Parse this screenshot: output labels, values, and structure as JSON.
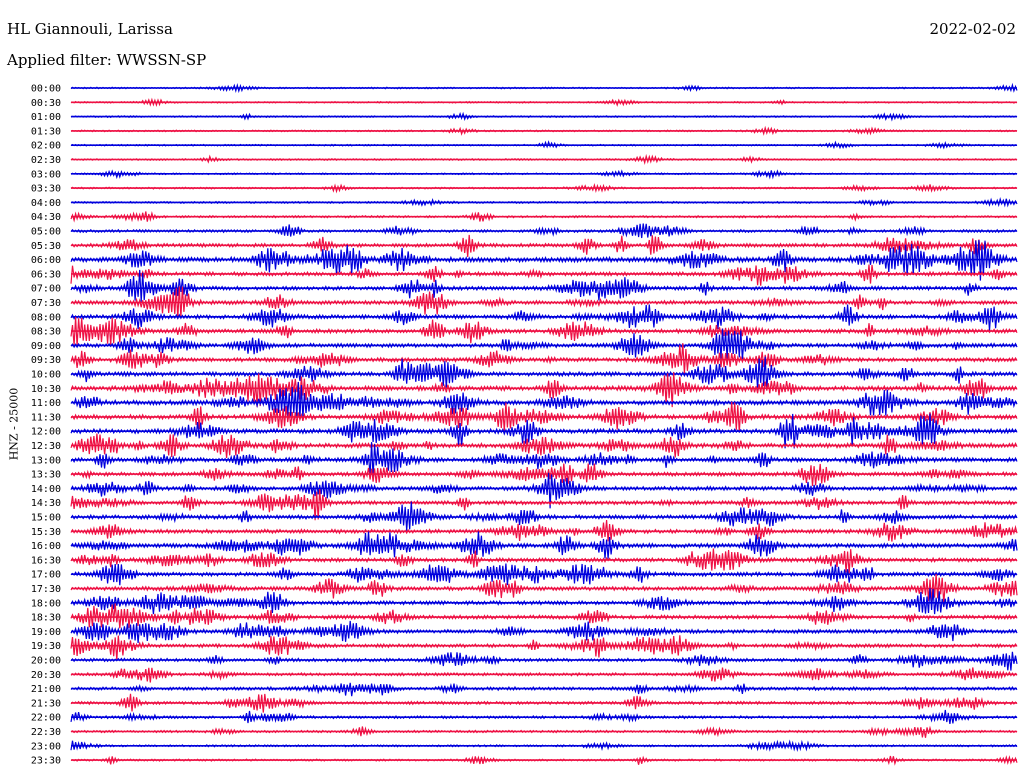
{
  "header": {
    "station": "HL Giannouli, Larissa",
    "date": "2022-02-02",
    "filter": "Applied filter: WWSSN-SP"
  },
  "axis_label": "HNZ - 25000",
  "colors": {
    "even_rows": "#0000dd",
    "odd_rows": "#ee1144"
  },
  "row_times": [
    "00:00",
    "00:30",
    "01:00",
    "01:30",
    "02:00",
    "02:30",
    "03:00",
    "03:30",
    "04:00",
    "04:30",
    "05:00",
    "05:30",
    "06:00",
    "06:30",
    "07:00",
    "07:30",
    "08:00",
    "08:30",
    "09:00",
    "09:30",
    "10:00",
    "10:30",
    "11:00",
    "11:30",
    "12:00",
    "12:30",
    "13:00",
    "13:30",
    "14:00",
    "14:30",
    "15:00",
    "15:30",
    "16:00",
    "16:30",
    "17:00",
    "17:30",
    "18:00",
    "18:30",
    "19:00",
    "19:30",
    "20:00",
    "20:30",
    "21:00",
    "21:30",
    "22:00",
    "22:30",
    "23:00",
    "23:30"
  ],
  "activity_level": [
    0.03,
    0.03,
    0.04,
    0.04,
    0.04,
    0.05,
    0.05,
    0.06,
    0.08,
    0.12,
    0.22,
    0.35,
    0.55,
    0.4,
    0.38,
    0.4,
    0.42,
    0.42,
    0.4,
    0.4,
    0.45,
    0.5,
    0.52,
    0.48,
    0.5,
    0.48,
    0.45,
    0.4,
    0.38,
    0.38,
    0.4,
    0.4,
    0.45,
    0.4,
    0.4,
    0.4,
    0.38,
    0.38,
    0.38,
    0.35,
    0.3,
    0.25,
    0.3,
    0.25,
    0.2,
    0.15,
    0.1,
    0.1
  ]
}
